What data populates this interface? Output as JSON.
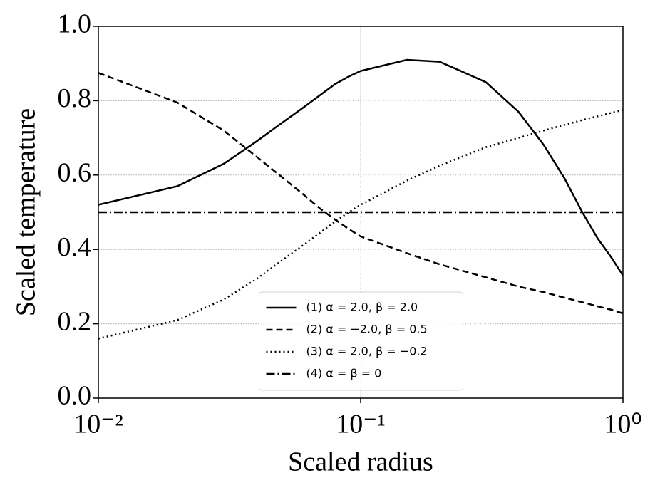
{
  "chart_data": {
    "type": "line",
    "x_label": "Scaled radius",
    "y_label": "Scaled temperature",
    "x_scale": "log",
    "grid": true,
    "legend_position": "lower center",
    "x": [
      0.01,
      0.02,
      0.03,
      0.04,
      0.05,
      0.06,
      0.07,
      0.08,
      0.09,
      0.1,
      0.15,
      0.2,
      0.3,
      0.4,
      0.5,
      0.6,
      0.7,
      0.8,
      0.9,
      1.0
    ],
    "xlim": [
      0.01,
      1
    ],
    "xticks": [
      {
        "value": 0.01,
        "label": "10⁻²"
      },
      {
        "value": 0.1,
        "label": "10⁻¹"
      },
      {
        "value": 1,
        "label": "10⁰"
      }
    ],
    "ylim": [
      0,
      1
    ],
    "yticks": [
      {
        "value": 0,
        "label": "0.0"
      },
      0.2,
      0.4,
      0.6,
      0.8,
      {
        "value": 1,
        "label": "1.0"
      }
    ],
    "series": [
      {
        "name": "(1) α = 2.0, β = 2.0",
        "color": "#000000",
        "linestyle": "solid",
        "values": [
          0.52,
          0.57,
          0.63,
          0.69,
          0.74,
          0.78,
          0.815,
          0.845,
          0.865,
          0.88,
          0.91,
          0.905,
          0.85,
          0.77,
          0.68,
          0.59,
          0.5,
          0.43,
          0.38,
          0.33
        ]
      },
      {
        "name": "(2) α = −2.0, β = 0.5",
        "color": "#000000",
        "linestyle": "dashed",
        "values": [
          0.875,
          0.795,
          0.72,
          0.65,
          0.595,
          0.55,
          0.51,
          0.48,
          0.455,
          0.435,
          0.39,
          0.36,
          0.325,
          0.3,
          0.285,
          0.27,
          0.258,
          0.247,
          0.238,
          0.228
        ]
      },
      {
        "name": "(3) α = 2.0, β = −0.2",
        "color": "#000000",
        "linestyle": "dotted",
        "values": [
          0.16,
          0.21,
          0.265,
          0.32,
          0.37,
          0.41,
          0.445,
          0.475,
          0.5,
          0.52,
          0.585,
          0.625,
          0.675,
          0.7,
          0.72,
          0.735,
          0.748,
          0.758,
          0.767,
          0.775
        ]
      },
      {
        "name": "(4) α = β = 0",
        "color": "#000000",
        "linestyle": "dashdot",
        "values": [
          0.5,
          0.5,
          0.5,
          0.5,
          0.5,
          0.5,
          0.5,
          0.5,
          0.5,
          0.5,
          0.5,
          0.5,
          0.5,
          0.5,
          0.5,
          0.5,
          0.5,
          0.5,
          0.5,
          0.5
        ]
      }
    ]
  }
}
